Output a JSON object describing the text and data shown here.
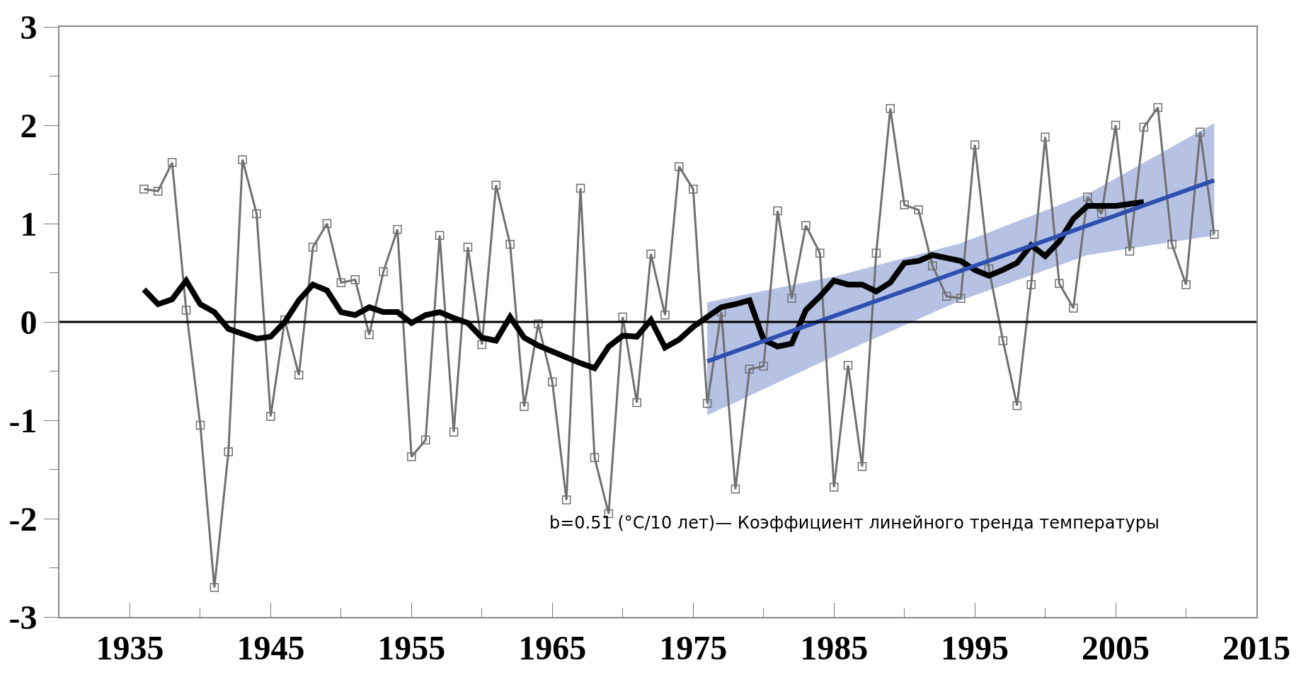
{
  "chart_data": {
    "type": "line",
    "x": [
      1936,
      1937,
      1938,
      1939,
      1940,
      1941,
      1942,
      1943,
      1944,
      1945,
      1946,
      1947,
      1948,
      1949,
      1950,
      1951,
      1952,
      1953,
      1954,
      1955,
      1956,
      1957,
      1958,
      1959,
      1960,
      1961,
      1962,
      1963,
      1964,
      1965,
      1966,
      1967,
      1968,
      1969,
      1970,
      1971,
      1972,
      1973,
      1974,
      1975,
      1976,
      1977,
      1978,
      1979,
      1980,
      1981,
      1982,
      1983,
      1984,
      1985,
      1986,
      1987,
      1988,
      1989,
      1990,
      1991,
      1992,
      1993,
      1994,
      1995,
      1996,
      1997,
      1998,
      1999,
      2000,
      2001,
      2002,
      2003,
      2004,
      2005,
      2006,
      2007,
      2008,
      2009,
      2010,
      2011,
      2012
    ],
    "series": [
      {
        "color": "#707070",
        "marker": "square",
        "values": [
          1.35,
          1.33,
          1.62,
          0.12,
          -1.05,
          -2.7,
          -1.32,
          1.65,
          1.1,
          -0.96,
          0.02,
          -0.54,
          0.76,
          1.0,
          0.4,
          0.43,
          -0.13,
          0.51,
          0.94,
          -1.37,
          -1.2,
          0.88,
          -1.12,
          0.76,
          -0.23,
          1.39,
          0.79,
          -0.86,
          -0.02,
          -0.61,
          -1.81,
          1.36,
          -1.38,
          -1.95,
          0.05,
          -0.82,
          0.69,
          0.07,
          1.58,
          1.35,
          -0.83,
          0.1,
          -1.7,
          -0.48,
          -0.45,
          1.13,
          0.24,
          0.98,
          0.7,
          -1.68,
          -0.44,
          -1.47,
          0.7,
          2.17,
          1.19,
          1.14,
          0.57,
          0.26,
          0.24,
          1.8,
          0.54,
          -0.19,
          -0.85,
          0.38,
          1.88,
          0.39,
          0.14,
          1.27,
          1.1,
          2.0,
          0.72,
          1.98,
          2.18,
          0.79,
          0.38,
          1.93,
          0.89
        ]
      },
      {
        "color": "#000000",
        "marker": "none",
        "x": [
          1936,
          1937,
          1938,
          1939,
          1940,
          1941,
          1942,
          1943,
          1944,
          1945,
          1946,
          1947,
          1948,
          1949,
          1950,
          1951,
          1952,
          1953,
          1954,
          1955,
          1956,
          1957,
          1958,
          1959,
          1960,
          1961,
          1962,
          1963,
          1964,
          1965,
          1966,
          1967,
          1968,
          1969,
          1970,
          1971,
          1972,
          1973,
          1974,
          1975,
          1976,
          1977,
          1978,
          1979,
          1980,
          1981,
          1982,
          1983,
          1984,
          1985,
          1986,
          1987,
          1988,
          1989,
          1990,
          1991,
          1992,
          1993,
          1994,
          1995,
          1996,
          1997,
          1998,
          1999,
          2000,
          2001,
          2002,
          2003,
          2004,
          2005,
          2006,
          2007
        ],
        "values": [
          0.33,
          0.18,
          0.23,
          0.42,
          0.18,
          0.1,
          -0.07,
          -0.12,
          -0.17,
          -0.15,
          0.0,
          0.22,
          0.38,
          0.32,
          0.1,
          0.07,
          0.15,
          0.1,
          0.1,
          -0.01,
          0.07,
          0.1,
          0.04,
          -0.01,
          -0.16,
          -0.19,
          0.05,
          -0.16,
          -0.24,
          -0.3,
          -0.36,
          -0.42,
          -0.47,
          -0.25,
          -0.14,
          -0.15,
          0.02,
          -0.26,
          -0.18,
          -0.05,
          0.05,
          0.15,
          0.18,
          0.22,
          -0.18,
          -0.25,
          -0.22,
          0.12,
          0.26,
          0.42,
          0.38,
          0.38,
          0.31,
          0.4,
          0.6,
          0.62,
          0.68,
          0.65,
          0.62,
          0.53,
          0.47,
          0.53,
          0.6,
          0.78,
          0.67,
          0.82,
          1.05,
          1.18,
          1.18,
          1.18,
          1.2,
          1.22
        ]
      },
      {
        "color": "#2e4fb0",
        "marker": "none",
        "x": [
          1976,
          1985,
          1994,
          2003,
          2012
        ],
        "values": [
          -0.4,
          0.06,
          0.52,
          0.98,
          1.44
        ],
        "lower": [
          -0.95,
          -0.35,
          0.22,
          0.68,
          0.88
        ],
        "upper": [
          0.2,
          0.46,
          0.8,
          1.3,
          2.02
        ]
      }
    ],
    "annotations": [
      "b=0.51 (°C/10 лет)— Коэффициент линейного тренда температуры"
    ],
    "ref_lines": [
      {
        "axis": "y",
        "value": 0,
        "color": "#000000"
      }
    ],
    "xlim": [
      1930,
      2015
    ],
    "xticks": [
      1935,
      {
        "value": 1940,
        "label": null
      },
      1945,
      {
        "value": 1950,
        "label": null
      },
      1955,
      {
        "value": 1960,
        "label": null
      },
      1965,
      {
        "value": 1970,
        "label": null
      },
      1975,
      {
        "value": 1980,
        "label": null
      },
      1985,
      {
        "value": 1990,
        "label": null
      },
      1995,
      {
        "value": 2000,
        "label": null
      },
      2005,
      {
        "value": 2010,
        "label": null
      },
      2015
    ],
    "ylim": [
      -3,
      3
    ],
    "yticks": [
      -3,
      {
        "value": -2.5,
        "label": null
      },
      -2,
      {
        "value": -1.5,
        "label": null
      },
      -1,
      {
        "value": -0.5,
        "label": null
      },
      0,
      {
        "value": 0.5,
        "label": null
      },
      1,
      {
        "value": 1.5,
        "label": null
      },
      2,
      {
        "value": 2.5,
        "label": null
      },
      3
    ],
    "line_style": "solid"
  }
}
